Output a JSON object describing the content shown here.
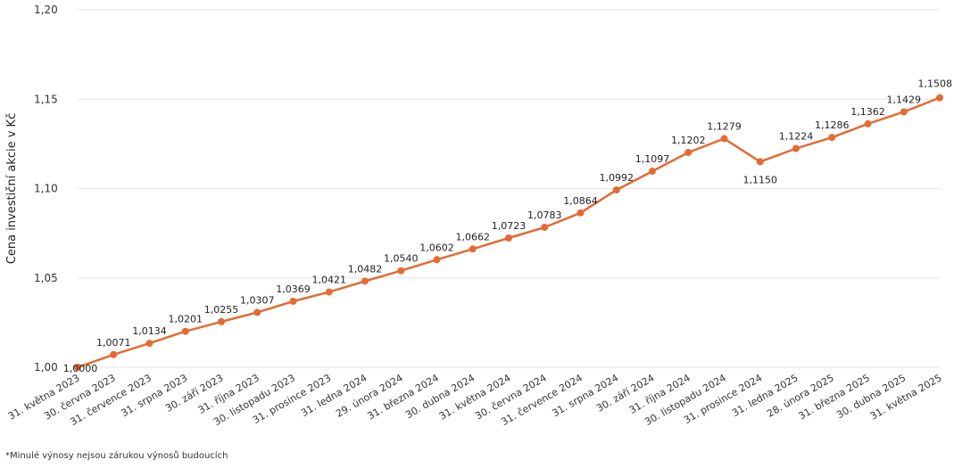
{
  "chart_data": {
    "type": "line",
    "title": "",
    "xlabel": "",
    "ylabel": "Cena investiční akcie v Kč",
    "ylim": [
      1.0,
      1.2
    ],
    "yticks": [
      "1,00",
      "1,05",
      "1,10",
      "1,15",
      "1,20"
    ],
    "grid": true,
    "legend": "none",
    "categories": [
      "31. května 2023",
      "30. června 2023",
      "31. července 2023",
      "31. srpna 2023",
      "30. září 2023",
      "31. října 2023",
      "30. listopadu 2023",
      "31. prosince 2023",
      "31. ledna 2024",
      "29. února 2024",
      "31. března 2024",
      "30. dubna 2024",
      "31. května 2024",
      "30. června 2024",
      "31. července 2024",
      "31. srpna 2024",
      "30. září 2024",
      "31. října 2024",
      "30. listopadu 2024",
      "31. prosince 2024",
      "31. ledna 2025",
      "28. února 2025",
      "31. března 2025",
      "30. dubna 2025",
      "31. května 2025"
    ],
    "series": [
      {
        "values": [
          1.0,
          1.0071,
          1.0134,
          1.0201,
          1.0255,
          1.0307,
          1.0369,
          1.0421,
          1.0482,
          1.054,
          1.0602,
          1.0662,
          1.0723,
          1.0783,
          1.0864,
          1.0992,
          1.1097,
          1.1202,
          1.1279,
          1.115,
          1.1224,
          1.1286,
          1.1362,
          1.1429,
          1.1508
        ],
        "labels": [
          "1,0000",
          "1,0071",
          "1,0134",
          "1,0201",
          "1,0255",
          "1,0307",
          "1,0369",
          "1,0421",
          "1,0482",
          "1,0540",
          "1,0602",
          "1,0662",
          "1,0723",
          "1,0783",
          "1,0864",
          "1,0992",
          "1,1097",
          "1,1202",
          "1,1279",
          "1,1150",
          "1,1224",
          "1,1286",
          "1,1362",
          "1,1429",
          "1,1508"
        ],
        "color": "#e46b32"
      }
    ]
  },
  "footnote": "*Minulé výnosy nejsou zárukou výnosů budoucích"
}
